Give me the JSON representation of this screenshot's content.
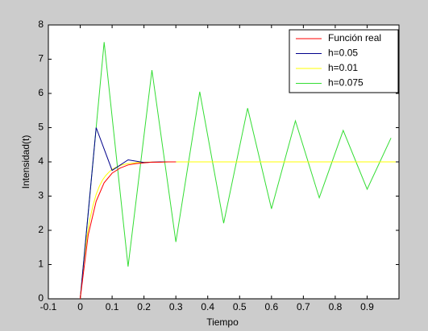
{
  "chart_data": {
    "type": "line",
    "xlabel": "Tiempo",
    "ylabel": "Intensidad(t)",
    "xlim": [
      -0.1,
      1.0
    ],
    "ylim": [
      0,
      8
    ],
    "xticks": [
      -0.1,
      0,
      0.1,
      0.2,
      0.3,
      0.4,
      0.5,
      0.6,
      0.7,
      0.8,
      0.9
    ],
    "yticks": [
      0,
      1,
      2,
      3,
      4,
      5,
      6,
      7,
      8
    ],
    "legend": "top-right",
    "series": [
      {
        "name": "Función real",
        "color": "#ff0000",
        "x": [
          0,
          0.025,
          0.05,
          0.075,
          0.1,
          0.125,
          0.15,
          0.175,
          0.2,
          0.225,
          0.25,
          0.275,
          0.3
        ],
        "values": [
          0,
          1.86,
          2.85,
          3.39,
          3.67,
          3.82,
          3.91,
          3.95,
          3.97,
          3.99,
          3.99,
          4,
          4
        ]
      },
      {
        "name": "h=0.05",
        "color": "#00008b",
        "x": [
          0,
          0.05,
          0.1,
          0.15,
          0.2,
          0.25,
          0.3
        ],
        "values": [
          0,
          5,
          3.75,
          4.06,
          3.98,
          4.0,
          4.0
        ]
      },
      {
        "name": "h=0.01",
        "color": "#ffff00",
        "x": [
          0,
          0.01,
          0.02,
          0.03,
          0.04,
          0.05,
          0.06,
          0.07,
          0.08,
          0.09,
          0.1,
          0.11,
          0.12,
          0.13,
          0.14,
          0.15,
          0.16,
          0.17,
          0.18,
          0.19,
          0.2,
          0.3,
          0.5,
          0.7,
          0.99
        ],
        "values": [
          0,
          1,
          1.75,
          2.31,
          2.73,
          3.05,
          3.29,
          3.47,
          3.6,
          3.7,
          3.78,
          3.83,
          3.87,
          3.91,
          3.93,
          3.95,
          3.96,
          3.97,
          3.98,
          3.98,
          3.99,
          4,
          4,
          4,
          4
        ]
      },
      {
        "name": "h=0.075",
        "color": "#33dd33",
        "x": [
          0,
          0.075,
          0.15,
          0.225,
          0.3,
          0.375,
          0.45,
          0.525,
          0.6,
          0.675,
          0.75,
          0.825,
          0.9,
          0.975
        ],
        "values": [
          0,
          7.5,
          0.94,
          6.68,
          1.66,
          6.05,
          2.21,
          5.57,
          2.63,
          5.2,
          2.95,
          4.92,
          3.2,
          4.7
        ]
      }
    ]
  }
}
